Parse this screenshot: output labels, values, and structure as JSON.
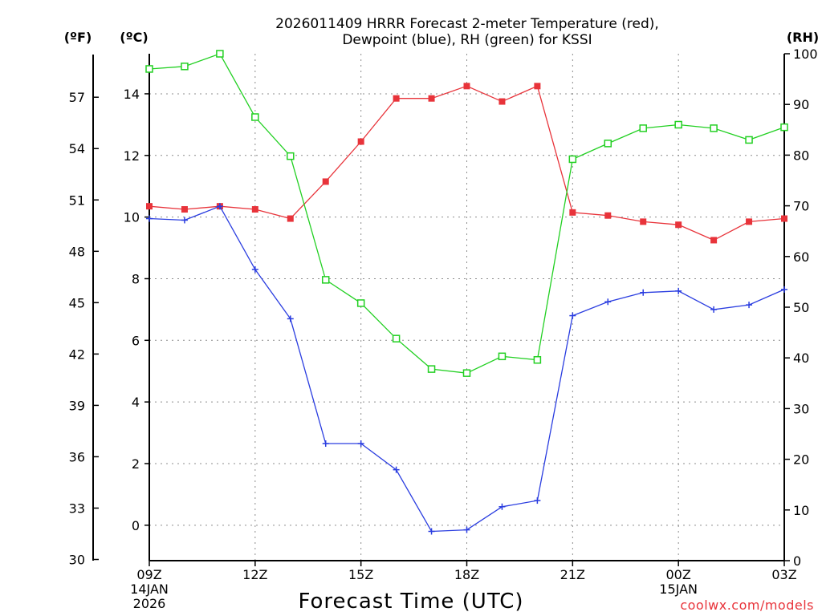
{
  "chart_data": {
    "type": "line",
    "title_line1": "2026011409 HRRR Forecast 2-meter Temperature (red),",
    "title_line2": "Dewpoint (blue), RH (green) for KSSI",
    "xlabel": "Forecast Time (UTC)",
    "units": {
      "fahrenheit": "(ºF)",
      "celsius": "(ºC)",
      "rh": "(RH)"
    },
    "credit": "coolwx.com/models",
    "x_hours": [
      9,
      10,
      11,
      12,
      13,
      14,
      15,
      16,
      17,
      18,
      19,
      20,
      21,
      22,
      23,
      24,
      25,
      26,
      27
    ],
    "x_range": [
      9,
      27
    ],
    "x_ticks": [
      {
        "hour": 9,
        "lines": [
          "09Z",
          "14JAN",
          "2026"
        ]
      },
      {
        "hour": 12,
        "lines": [
          "12Z"
        ]
      },
      {
        "hour": 15,
        "lines": [
          "15Z"
        ]
      },
      {
        "hour": 18,
        "lines": [
          "18Z"
        ]
      },
      {
        "hour": 21,
        "lines": [
          "21Z"
        ]
      },
      {
        "hour": 24,
        "lines": [
          "00Z",
          "15JAN"
        ]
      },
      {
        "hour": 27,
        "lines": [
          "03Z"
        ]
      }
    ],
    "y_celsius_range": [
      -1.15,
      15.3
    ],
    "y_celsius_ticks": [
      0,
      2,
      4,
      6,
      8,
      10,
      12,
      14
    ],
    "y_fahrenheit_range": [
      29.93,
      59.54
    ],
    "y_fahrenheit_ticks": [
      30,
      33,
      36,
      39,
      42,
      45,
      48,
      51,
      54,
      57
    ],
    "y_rh_range": [
      0,
      100
    ],
    "y_rh_ticks": [
      0,
      10,
      20,
      30,
      40,
      50,
      60,
      70,
      80,
      90,
      100
    ],
    "grid": true,
    "series": [
      {
        "axis": "celsius",
        "color": "#e8333a",
        "marker": "filled-square",
        "values": [
          10.35,
          10.25,
          10.35,
          10.25,
          9.95,
          11.15,
          12.45,
          13.85,
          13.85,
          14.25,
          13.75,
          14.25,
          10.15,
          10.05,
          9.85,
          9.75,
          9.25,
          9.85,
          9.95
        ]
      },
      {
        "axis": "celsius",
        "color": "#2a3de0",
        "marker": "plus",
        "values": [
          9.95,
          9.9,
          10.35,
          8.3,
          6.7,
          2.65,
          2.65,
          1.8,
          -0.2,
          -0.15,
          0.6,
          0.8,
          6.8,
          7.25,
          7.55,
          7.6,
          7.0,
          7.15,
          7.65
        ]
      },
      {
        "axis": "rh",
        "color": "#22d022",
        "marker": "open-square",
        "values": [
          97.0,
          97.5,
          100.0,
          87.5,
          79.8,
          55.4,
          50.8,
          43.8,
          37.8,
          37.0,
          40.3,
          39.6,
          79.2,
          82.3,
          85.3,
          86.0,
          85.3,
          83.0,
          85.5
        ]
      }
    ]
  }
}
